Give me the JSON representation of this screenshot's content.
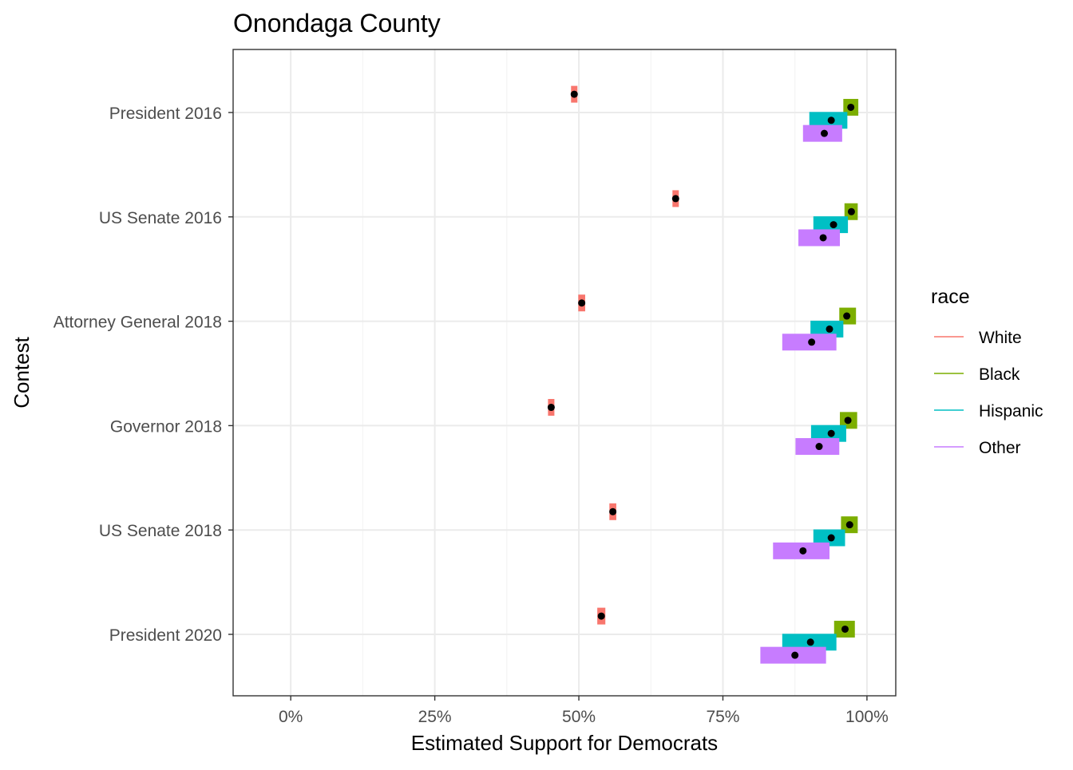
{
  "chart_data": {
    "type": "interval",
    "title": "Onondaga County",
    "xlabel": "Estimated Support for Democrats",
    "ylabel": "Contest",
    "xlim": [
      -0.1,
      1.05
    ],
    "x_ticks": [
      0,
      0.25,
      0.5,
      0.75,
      1.0
    ],
    "x_tick_labels": [
      "0%",
      "25%",
      "50%",
      "75%",
      "100%"
    ],
    "x_minor_ticks": [
      0.125,
      0.375,
      0.625,
      0.875
    ],
    "categories": [
      "President 2016",
      "US Senate 2016",
      "Attorney General 2018",
      "Governor 2018",
      "US Senate 2018",
      "President 2020"
    ],
    "legend": {
      "title": "race",
      "position": "right",
      "entries": [
        {
          "label": "White",
          "color": "#F8766D"
        },
        {
          "label": "Black",
          "color": "#7CAE00"
        },
        {
          "label": "Hispanic",
          "color": "#00BFC4"
        },
        {
          "label": "Other",
          "color": "#C77CFF"
        }
      ]
    },
    "series": [
      {
        "name": "White",
        "color": "#F8766D",
        "offset": -0.175,
        "points": [
          {
            "contest": "President 2016",
            "estimate": 0.492,
            "low": 0.487,
            "high": 0.497
          },
          {
            "contest": "US Senate 2016",
            "estimate": 0.668,
            "low": 0.663,
            "high": 0.673
          },
          {
            "contest": "Attorney General 2018",
            "estimate": 0.505,
            "low": 0.499,
            "high": 0.511
          },
          {
            "contest": "Governor 2018",
            "estimate": 0.452,
            "low": 0.447,
            "high": 0.457
          },
          {
            "contest": "US Senate 2018",
            "estimate": 0.559,
            "low": 0.553,
            "high": 0.565
          },
          {
            "contest": "President 2020",
            "estimate": 0.539,
            "low": 0.532,
            "high": 0.546
          }
        ]
      },
      {
        "name": "Black",
        "color": "#7CAE00",
        "offset": -0.05,
        "points": [
          {
            "contest": "President 2016",
            "estimate": 0.972,
            "low": 0.959,
            "high": 0.985
          },
          {
            "contest": "US Senate 2016",
            "estimate": 0.973,
            "low": 0.961,
            "high": 0.984
          },
          {
            "contest": "Attorney General 2018",
            "estimate": 0.965,
            "low": 0.952,
            "high": 0.981
          },
          {
            "contest": "Governor 2018",
            "estimate": 0.967,
            "low": 0.953,
            "high": 0.983
          },
          {
            "contest": "US Senate 2018",
            "estimate": 0.97,
            "low": 0.955,
            "high": 0.984
          },
          {
            "contest": "President 2020",
            "estimate": 0.962,
            "low": 0.943,
            "high": 0.979
          }
        ]
      },
      {
        "name": "Hispanic",
        "color": "#00BFC4",
        "offset": 0.075,
        "points": [
          {
            "contest": "President 2016",
            "estimate": 0.938,
            "low": 0.9,
            "high": 0.966
          },
          {
            "contest": "US Senate 2016",
            "estimate": 0.942,
            "low": 0.907,
            "high": 0.967
          },
          {
            "contest": "Attorney General 2018",
            "estimate": 0.935,
            "low": 0.902,
            "high": 0.959
          },
          {
            "contest": "Governor 2018",
            "estimate": 0.938,
            "low": 0.903,
            "high": 0.964
          },
          {
            "contest": "US Senate 2018",
            "estimate": 0.938,
            "low": 0.907,
            "high": 0.962
          },
          {
            "contest": "President 2020",
            "estimate": 0.902,
            "low": 0.853,
            "high": 0.947
          }
        ]
      },
      {
        "name": "Other",
        "color": "#C77CFF",
        "offset": 0.2,
        "points": [
          {
            "contest": "President 2016",
            "estimate": 0.926,
            "low": 0.889,
            "high": 0.957
          },
          {
            "contest": "US Senate 2016",
            "estimate": 0.924,
            "low": 0.881,
            "high": 0.953
          },
          {
            "contest": "Attorney General 2018",
            "estimate": 0.904,
            "low": 0.853,
            "high": 0.947
          },
          {
            "contest": "Governor 2018",
            "estimate": 0.917,
            "low": 0.876,
            "high": 0.952
          },
          {
            "contest": "US Senate 2018",
            "estimate": 0.889,
            "low": 0.837,
            "high": 0.935
          },
          {
            "contest": "President 2020",
            "estimate": 0.875,
            "low": 0.815,
            "high": 0.929
          }
        ]
      }
    ]
  }
}
